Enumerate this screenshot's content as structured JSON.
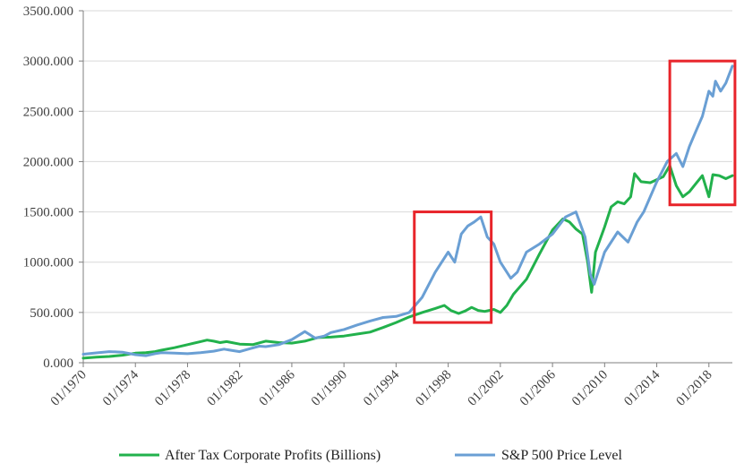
{
  "chart_data": {
    "type": "line",
    "title": "",
    "xlabel": "",
    "ylabel": "",
    "xlim": [
      1970.0,
      2019.8
    ],
    "ylim": [
      0,
      3500
    ],
    "y_ticks": [
      {
        "value": 0,
        "label": "0.000"
      },
      {
        "value": 500,
        "label": "500.000"
      },
      {
        "value": 1000,
        "label": "1000.000"
      },
      {
        "value": 1500,
        "label": "1500.000"
      },
      {
        "value": 2000,
        "label": "2000.000"
      },
      {
        "value": 2500,
        "label": "2500.000"
      },
      {
        "value": 3000,
        "label": "3000.000"
      },
      {
        "value": 3500,
        "label": "3500.000"
      }
    ],
    "x_ticks": [
      {
        "value": 1970,
        "label": "01/1970"
      },
      {
        "value": 1974,
        "label": "01/1974"
      },
      {
        "value": 1978,
        "label": "01/1978"
      },
      {
        "value": 1982,
        "label": "01/1982"
      },
      {
        "value": 1986,
        "label": "01/1986"
      },
      {
        "value": 1990,
        "label": "01/1990"
      },
      {
        "value": 1994,
        "label": "01/1994"
      },
      {
        "value": 1998,
        "label": "01/1998"
      },
      {
        "value": 2002,
        "label": "01/2002"
      },
      {
        "value": 2006,
        "label": "01/2006"
      },
      {
        "value": 2010,
        "label": "01/2010"
      },
      {
        "value": 2014,
        "label": "01/2014"
      },
      {
        "value": 2018,
        "label": "01/2018"
      }
    ],
    "grid": true,
    "legend_position": "bottom",
    "series": [
      {
        "name": "After Tax Corporate Profits (Billions)",
        "color": "#22b14c",
        "points": [
          [
            1970.0,
            45
          ],
          [
            1971.0,
            55
          ],
          [
            1972.0,
            62
          ],
          [
            1973.0,
            75
          ],
          [
            1974.0,
            95
          ],
          [
            1974.8,
            100
          ],
          [
            1975.5,
            110
          ],
          [
            1976.0,
            125
          ],
          [
            1977.0,
            150
          ],
          [
            1978.0,
            180
          ],
          [
            1979.0,
            210
          ],
          [
            1979.5,
            225
          ],
          [
            1980.0,
            215
          ],
          [
            1980.5,
            200
          ],
          [
            1981.0,
            210
          ],
          [
            1982.0,
            185
          ],
          [
            1983.0,
            180
          ],
          [
            1984.0,
            215
          ],
          [
            1985.0,
            200
          ],
          [
            1986.0,
            195
          ],
          [
            1987.0,
            215
          ],
          [
            1988.0,
            250
          ],
          [
            1989.0,
            255
          ],
          [
            1990.0,
            265
          ],
          [
            1991.0,
            285
          ],
          [
            1992.0,
            305
          ],
          [
            1993.0,
            350
          ],
          [
            1994.0,
            400
          ],
          [
            1995.0,
            455
          ],
          [
            1996.0,
            500
          ],
          [
            1997.0,
            540
          ],
          [
            1997.7,
            570
          ],
          [
            1998.2,
            520
          ],
          [
            1998.8,
            490
          ],
          [
            1999.3,
            515
          ],
          [
            1999.8,
            550
          ],
          [
            2000.3,
            520
          ],
          [
            2000.8,
            510
          ],
          [
            2001.5,
            530
          ],
          [
            2002.0,
            500
          ],
          [
            2002.5,
            570
          ],
          [
            2003.0,
            680
          ],
          [
            2004.0,
            830
          ],
          [
            2005.0,
            1080
          ],
          [
            2006.0,
            1320
          ],
          [
            2006.8,
            1430
          ],
          [
            2007.3,
            1400
          ],
          [
            2007.8,
            1330
          ],
          [
            2008.3,
            1280
          ],
          [
            2008.7,
            1000
          ],
          [
            2009.0,
            700
          ],
          [
            2009.3,
            1100
          ],
          [
            2010.0,
            1350
          ],
          [
            2010.5,
            1550
          ],
          [
            2011.0,
            1600
          ],
          [
            2011.5,
            1580
          ],
          [
            2012.0,
            1650
          ],
          [
            2012.3,
            1880
          ],
          [
            2012.8,
            1800
          ],
          [
            2013.5,
            1790
          ],
          [
            2014.0,
            1820
          ],
          [
            2014.5,
            1850
          ],
          [
            2015.0,
            1960
          ],
          [
            2015.5,
            1760
          ],
          [
            2016.0,
            1650
          ],
          [
            2016.5,
            1700
          ],
          [
            2017.0,
            1780
          ],
          [
            2017.5,
            1860
          ],
          [
            2018.0,
            1650
          ],
          [
            2018.3,
            1870
          ],
          [
            2018.8,
            1860
          ],
          [
            2019.3,
            1830
          ],
          [
            2019.8,
            1860
          ]
        ]
      },
      {
        "name": "S&P 500 Price Level",
        "color": "#6a9fd4",
        "points": [
          [
            1970.0,
            85
          ],
          [
            1971.0,
            98
          ],
          [
            1972.0,
            110
          ],
          [
            1973.0,
            105
          ],
          [
            1974.0,
            80
          ],
          [
            1974.8,
            70
          ],
          [
            1975.5,
            90
          ],
          [
            1976.0,
            100
          ],
          [
            1977.0,
            95
          ],
          [
            1978.0,
            90
          ],
          [
            1979.0,
            100
          ],
          [
            1980.0,
            115
          ],
          [
            1980.8,
            135
          ],
          [
            1981.5,
            120
          ],
          [
            1982.0,
            110
          ],
          [
            1982.8,
            140
          ],
          [
            1983.5,
            165
          ],
          [
            1984.0,
            160
          ],
          [
            1985.0,
            180
          ],
          [
            1986.0,
            230
          ],
          [
            1987.0,
            310
          ],
          [
            1987.8,
            245
          ],
          [
            1988.5,
            265
          ],
          [
            1989.0,
            300
          ],
          [
            1990.0,
            330
          ],
          [
            1991.0,
            375
          ],
          [
            1992.0,
            415
          ],
          [
            1993.0,
            450
          ],
          [
            1994.0,
            460
          ],
          [
            1995.0,
            500
          ],
          [
            1996.0,
            650
          ],
          [
            1997.0,
            900
          ],
          [
            1998.0,
            1100
          ],
          [
            1998.5,
            1000
          ],
          [
            1999.0,
            1280
          ],
          [
            1999.5,
            1360
          ],
          [
            2000.0,
            1400
          ],
          [
            2000.5,
            1450
          ],
          [
            2001.0,
            1250
          ],
          [
            2001.5,
            1180
          ],
          [
            2002.0,
            1000
          ],
          [
            2002.8,
            840
          ],
          [
            2003.3,
            900
          ],
          [
            2004.0,
            1100
          ],
          [
            2005.0,
            1180
          ],
          [
            2006.0,
            1280
          ],
          [
            2007.0,
            1450
          ],
          [
            2007.8,
            1500
          ],
          [
            2008.5,
            1250
          ],
          [
            2008.9,
            880
          ],
          [
            2009.2,
            780
          ],
          [
            2010.0,
            1100
          ],
          [
            2011.0,
            1300
          ],
          [
            2011.8,
            1200
          ],
          [
            2012.5,
            1400
          ],
          [
            2013.0,
            1500
          ],
          [
            2014.0,
            1800
          ],
          [
            2014.8,
            2000
          ],
          [
            2015.5,
            2080
          ],
          [
            2016.0,
            1950
          ],
          [
            2016.5,
            2150
          ],
          [
            2017.0,
            2300
          ],
          [
            2017.5,
            2450
          ],
          [
            2018.0,
            2700
          ],
          [
            2018.3,
            2650
          ],
          [
            2018.5,
            2800
          ],
          [
            2018.9,
            2700
          ],
          [
            2019.3,
            2780
          ],
          [
            2019.8,
            2950
          ]
        ]
      }
    ]
  },
  "colors": {
    "highlight": "#e8242a",
    "grid": "#d9d9d9",
    "axis": "#7f7f7f"
  },
  "highlight_boxes": [
    {
      "x_range": [
        1995.4,
        2001.3
      ],
      "y_range": [
        400,
        1500
      ]
    },
    {
      "x_range": [
        2015.0,
        2020.0
      ],
      "y_range": [
        1570,
        3000
      ]
    }
  ]
}
